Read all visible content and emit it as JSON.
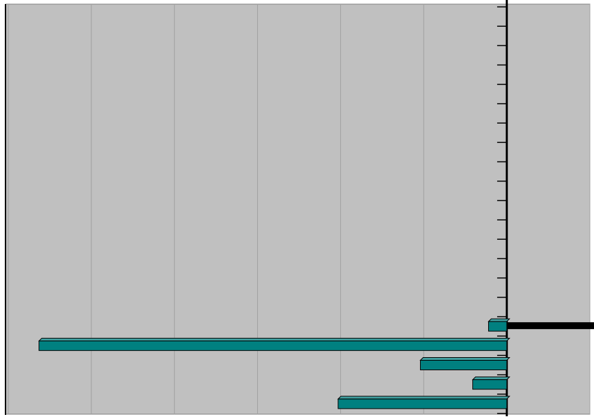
{
  "chart_data": {
    "type": "bar",
    "orientation": "horizontal",
    "categories": [
      null,
      null,
      null,
      null,
      null,
      null,
      null,
      null,
      null,
      null,
      null,
      null,
      null,
      null,
      null,
      null,
      null,
      null,
      null,
      null,
      null
    ],
    "series": [
      {
        "color": "#008080",
        "values": [
          null,
          null,
          null,
          null,
          null,
          null,
          null,
          null,
          null,
          null,
          null,
          null,
          null,
          null,
          null,
          null,
          -0.22,
          -5.63,
          -1.04,
          -0.41,
          -2.03
        ]
      },
      {
        "color": "#000000",
        "values": [
          null,
          null,
          null,
          null,
          null,
          null,
          null,
          null,
          null,
          null,
          null,
          null,
          null,
          null,
          null,
          null,
          1.05,
          null,
          null,
          null,
          null
        ]
      }
    ],
    "xlim": [
      -6,
      1
    ],
    "xticks": [
      -6,
      -5,
      -4,
      -3,
      -2,
      -1,
      0,
      1
    ],
    "grid": true
  }
}
